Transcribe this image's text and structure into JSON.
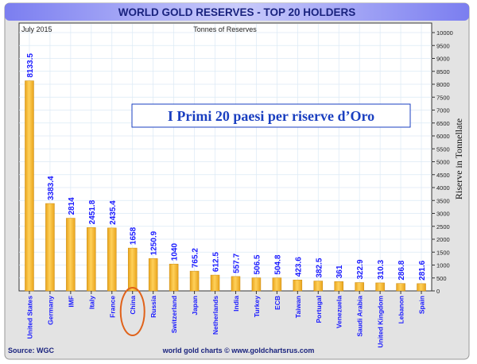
{
  "chart_data": {
    "type": "bar",
    "title": "WORLD GOLD RESERVES - TOP 20 HOLDERS",
    "subtitle": "Tonnes of Reserves",
    "date_label": "July 2015",
    "ylabel": "Riserve in Tonnellate",
    "annotation": "I Primi 20 paesi per riserve d’Oro",
    "highlighted_category": "China",
    "source": "Source: WGC",
    "credit": "world gold charts © www.goldchartsrus.com",
    "ylim": [
      0,
      10000
    ],
    "ytick_step": 500,
    "grid": true,
    "categories": [
      "United States",
      "Germany",
      "IMF",
      "Italy",
      "France",
      "China",
      "Russia",
      "Switzerland",
      "Japan",
      "Netherlands",
      "India",
      "Turkey",
      "ECB",
      "Taiwan",
      "Portugal",
      "Venezuela",
      "Saudi Arabia",
      "United Kingdom",
      "Lebanon",
      "Spain"
    ],
    "values": [
      8133.5,
      3383.4,
      2814,
      2451.8,
      2435.4,
      1658,
      1250.9,
      1040,
      765.2,
      612.5,
      557.7,
      506.5,
      504.8,
      423.6,
      382.5,
      361,
      322.9,
      310.3,
      286.8,
      281.6
    ],
    "value_labels": [
      "8133.5",
      "3383.4",
      "2814",
      "2451.8",
      "2435.4",
      "1658",
      "1250.9",
      "1040",
      "765.2",
      "612.5",
      "557.7",
      "506.5",
      "504.8",
      "423.6",
      "382.5",
      "361",
      "322.9",
      "310.3",
      "286.8",
      "281.6"
    ],
    "colors": {
      "bar": "#f5b731",
      "bar_edge": "#c98a10",
      "label": "#1a1aff",
      "title": "#1a237e",
      "highlight": "#e0621a",
      "annotation": "#1a3fc0"
    }
  }
}
